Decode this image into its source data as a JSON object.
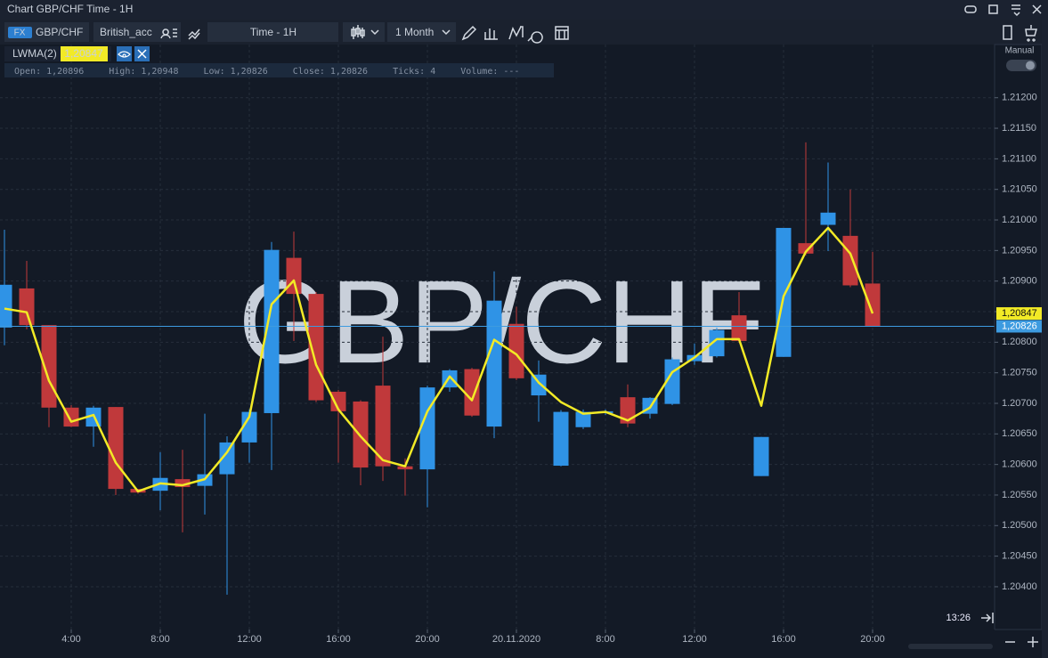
{
  "window": {
    "title": "Chart GBP/CHF Time - 1H"
  },
  "toolbar": {
    "market_badge": "FX",
    "symbol": "GBP/CHF",
    "account": "British_acc",
    "timeframe": "Time - 1H",
    "period": "1 Month"
  },
  "ohlc_strip": [
    {
      "label": "Open:",
      "value": "1,20896"
    },
    {
      "label": "High:",
      "value": "1,20948"
    },
    {
      "label": "Low:",
      "value": "1,20826"
    },
    {
      "label": "Close:",
      "value": "1,20826"
    },
    {
      "label": "Ticks:",
      "value": "4"
    },
    {
      "label": "Volume:",
      "value": "---"
    }
  ],
  "scale_mode": "Manual",
  "chart_data": {
    "type": "candlestick",
    "watermark": "GBP/CHF",
    "x": [
      1,
      2,
      3,
      4,
      5,
      6,
      7,
      8,
      9,
      10,
      11,
      12,
      13,
      14,
      15,
      16,
      17,
      18,
      19,
      20,
      21,
      22,
      23,
      24,
      25,
      26,
      27,
      28,
      29,
      30,
      31,
      32,
      33,
      34,
      35,
      36,
      37,
      38,
      39,
      40
    ],
    "open": [
      1.20824,
      1.20888,
      1.20828,
      1.20693,
      1.20662,
      1.20694,
      1.2056,
      1.20557,
      1.20576,
      1.20565,
      1.20584,
      1.20636,
      1.20684,
      1.20938,
      1.20879,
      1.20719,
      1.20703,
      1.20729,
      1.20597,
      1.20592,
      1.20726,
      1.20756,
      1.20662,
      1.2083,
      1.20713,
      1.20598,
      1.20661,
      1.20684,
      1.2071,
      1.20683,
      1.20699,
      1.20769,
      1.20777,
      1.20844,
      1.20581,
      1.20776,
      1.20962,
      1.20992,
      1.20974,
      1.20896
    ],
    "high": [
      1.20984,
      1.20933,
      1.20828,
      1.20697,
      1.20696,
      1.20694,
      1.2056,
      1.2062,
      1.20624,
      1.20683,
      1.20646,
      1.2069,
      1.20964,
      1.20981,
      1.20882,
      1.20722,
      1.20705,
      1.20809,
      1.2061,
      1.20729,
      1.20756,
      1.20758,
      1.20916,
      1.20858,
      1.2077,
      1.20689,
      1.2069,
      1.2069,
      1.20731,
      1.2071,
      1.20775,
      1.20798,
      1.20824,
      1.20882,
      1.20645,
      1.20987,
      1.21127,
      1.21094,
      1.2105,
      1.20948
    ],
    "low": [
      1.20795,
      1.20821,
      1.20661,
      1.20661,
      1.20629,
      1.2055,
      1.20552,
      1.20525,
      1.20489,
      1.20518,
      1.20387,
      1.20603,
      1.20591,
      1.20802,
      1.20702,
      1.20603,
      1.20566,
      1.20573,
      1.20549,
      1.2053,
      1.20719,
      1.20678,
      1.20643,
      1.20738,
      1.2067,
      1.20597,
      1.20658,
      1.20681,
      1.20661,
      1.20675,
      1.20697,
      1.20763,
      1.20775,
      1.20799,
      1.20581,
      1.20776,
      1.20942,
      1.20949,
      1.2089,
      1.20826
    ],
    "close": [
      1.20894,
      1.20828,
      1.20693,
      1.20662,
      1.20693,
      1.2056,
      1.20554,
      1.20578,
      1.20563,
      1.20584,
      1.20636,
      1.20686,
      1.20951,
      1.20879,
      1.20705,
      1.20687,
      1.20595,
      1.20597,
      1.20592,
      1.20726,
      1.20754,
      1.2068,
      1.20868,
      1.20741,
      1.20747,
      1.20686,
      1.20686,
      1.20687,
      1.20667,
      1.20709,
      1.20772,
      1.20779,
      1.2082,
      1.20802,
      1.20645,
      1.20987,
      1.20945,
      1.21012,
      1.20893,
      1.20826
    ],
    "up_color": "#2f93e6",
    "down_color": "#c0393b",
    "overlays": [
      {
        "name": "LWMA(2)",
        "color": "#f2ea26",
        "values": [
          1.20855,
          1.20849,
          1.20737,
          1.2067,
          1.20681,
          1.20603,
          1.20556,
          1.20569,
          1.20566,
          1.20576,
          1.2062,
          1.20678,
          1.20862,
          1.20901,
          1.20763,
          1.2069,
          1.20646,
          1.20607,
          1.20597,
          1.20687,
          1.20744,
          1.20705,
          1.20804,
          1.2078,
          1.20734,
          1.20702,
          1.20683,
          1.20686,
          1.20672,
          1.20693,
          1.20751,
          1.20775,
          1.20805,
          1.20805,
          1.20696,
          1.20875,
          1.20948,
          1.20987,
          1.20945,
          1.20847
        ],
        "last_value": {
          "value": 1.20847,
          "label": "1,20847"
        }
      }
    ],
    "price_line": {
      "value": 1.20826,
      "label": "1,20826",
      "color": "#3d9be0"
    },
    "countdown": "13:26",
    "xlim": [
      0.8,
      45.48
    ],
    "xticks": [
      {
        "value": 4,
        "label": "4:00"
      },
      {
        "value": 8,
        "label": "8:00"
      },
      {
        "value": 12,
        "label": "12:00"
      },
      {
        "value": 16,
        "label": "16:00"
      },
      {
        "value": 20,
        "label": "20:00"
      },
      {
        "value": 24,
        "label": "20.11.2020"
      },
      {
        "value": 28,
        "label": "8:00"
      },
      {
        "value": 32,
        "label": "12:00"
      },
      {
        "value": 36,
        "label": "16:00"
      },
      {
        "value": 40,
        "label": "20:00"
      }
    ],
    "ylim": [
      1.2033,
      1.21287
    ],
    "yticks": [
      {
        "value": 1.212,
        "label": "1.21200"
      },
      {
        "value": 1.2115,
        "label": "1.21150"
      },
      {
        "value": 1.211,
        "label": "1.21100"
      },
      {
        "value": 1.2105,
        "label": "1.21050"
      },
      {
        "value": 1.21,
        "label": "1.21000"
      },
      {
        "value": 1.2095,
        "label": "1.20950"
      },
      {
        "value": 1.209,
        "label": "1.20900"
      },
      {
        "value": 1.2085,
        "label": "1.20850"
      },
      {
        "value": 1.208,
        "label": "1.20800"
      },
      {
        "value": 1.2075,
        "label": "1.20750"
      },
      {
        "value": 1.207,
        "label": "1.20700"
      },
      {
        "value": 1.2065,
        "label": "1.20650"
      },
      {
        "value": 1.206,
        "label": "1.20600"
      },
      {
        "value": 1.2055,
        "label": "1.20550"
      },
      {
        "value": 1.205,
        "label": "1.20500"
      },
      {
        "value": 1.2045,
        "label": "1.20450"
      },
      {
        "value": 1.204,
        "label": "1.20400"
      }
    ],
    "grid": true
  }
}
